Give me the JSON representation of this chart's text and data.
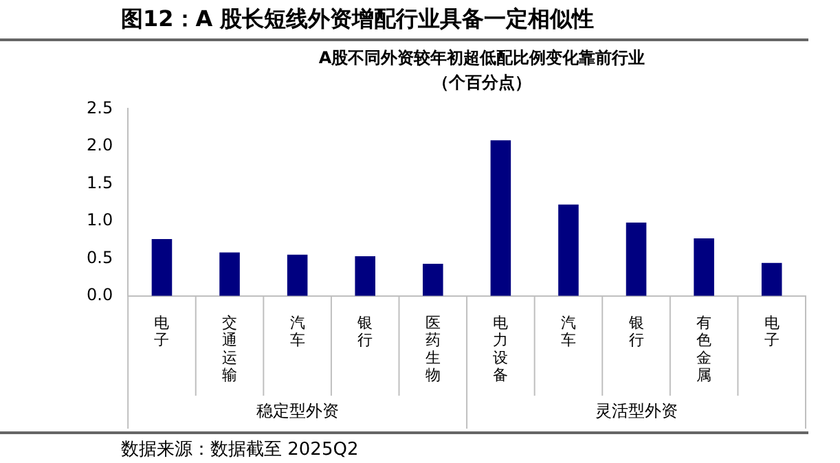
{
  "chart_data": {
    "type": "bar",
    "title": "图12：A 股长短线外资增配行业具备一定相似性",
    "subtitle": "A股不同外资较年初超低配比例变化靠前行业",
    "ylabel": "（个百分点）",
    "categories": [
      "电子",
      "交通运输",
      "汽车",
      "银行",
      "医药生物",
      "电力设备",
      "汽车",
      "银行",
      "有色金属",
      "电子"
    ],
    "values": [
      0.76,
      0.58,
      0.55,
      0.53,
      0.43,
      2.08,
      1.22,
      0.98,
      0.77,
      0.44
    ],
    "color": "#000080",
    "ylim": [
      0,
      2.5
    ],
    "yticks": [
      {
        "value": 0,
        "label": "0.0"
      },
      0.5,
      {
        "value": 1,
        "label": "1.0"
      },
      1.5,
      {
        "value": 2,
        "label": "2.0"
      },
      2.5
    ],
    "grid": false,
    "annotations": [
      "稳定型外资",
      "灵活型外资",
      "数据来源：数据截至 2025Q2"
    ]
  }
}
